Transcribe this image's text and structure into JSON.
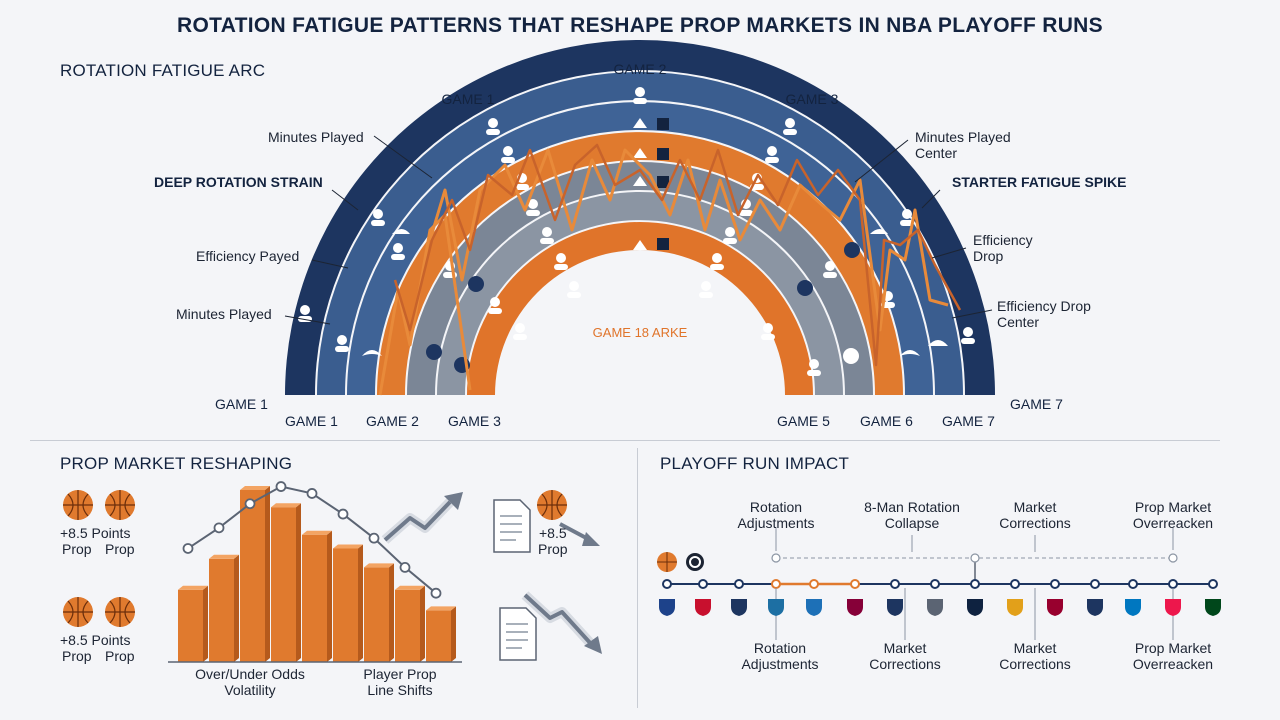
{
  "title": "ROTATION FATIGUE PATTERNS THAT RESHAPE PROP MARKETS IN NBA PLAYOFF RUNS",
  "arc": {
    "heading": "ROTATION FATIGUE ARC",
    "top_labels": {
      "game2": "GAME 2",
      "game1": "GAME 1",
      "game3": "GAME 3"
    },
    "left_callouts": [
      "Minutes Played",
      "DEEP ROTATION STRAIN",
      "Efficiency Payed",
      "Minutes Played"
    ],
    "right_callouts": [
      "Minutes Played Center",
      "STARTER FATIGUE SPIKE",
      "Efficiency Drop",
      "Efficiency Drop Center"
    ],
    "center_label": "GAME 18 ARKE",
    "bottom_left_game1": "GAME 1",
    "bottom_right_game7": "GAME 7",
    "baseline_games": [
      "GAME 1",
      "GAME 2",
      "GAME 3",
      "GAME 5",
      "GAME 6",
      "GAME 7"
    ],
    "colors": {
      "navy": "#1d3560",
      "blue": "#3a5d8f",
      "orange": "#e07a2e",
      "gray": "#7b8696",
      "line": "#e88a3a"
    }
  },
  "prop": {
    "heading": "PROP MARKET RESHAPING",
    "icon_labels": [
      "+8.5 Points",
      "Prop",
      "Prop",
      "+8.5 Points",
      "Prop",
      "Prop"
    ],
    "doc_label_1": "+8.5",
    "doc_label_1b": "Prop",
    "x_label_1": "Over/Under Odds",
    "x_label_1b": "Volatility",
    "x_label_2": "Player Prop",
    "x_label_2b": "Line Shifts",
    "bars": [
      0.42,
      0.6,
      1.0,
      0.9,
      0.74,
      0.66,
      0.55,
      0.42,
      0.3
    ]
  },
  "impact": {
    "heading": "PLAYOFF RUN IMPACT",
    "top_labels": [
      [
        "Rotation",
        "Adjustments"
      ],
      [
        "8-Man Rotation",
        "Collapse"
      ],
      [
        "Market",
        "Corrections"
      ],
      [
        "Prop Market",
        "Overreacken"
      ]
    ],
    "bottom_labels": [
      [
        "Rotation",
        "Adjustments"
      ],
      [
        "Market",
        "Corrections"
      ],
      [
        "Market",
        "Corrections"
      ],
      [
        "Prop Market",
        "Overreacken"
      ]
    ],
    "team_icons": [
      "nba-logo-icon",
      "hawks-icon",
      "nets-icon",
      "hornets-icon",
      "bulls-icon",
      "cavaliers-icon",
      "mavericks-icon",
      "celtics-icon",
      "nuggets-icon",
      "pistons-icon",
      "heat-icon",
      "knicks-icon",
      "magic-icon",
      "76ers-icon",
      "bucks-icon"
    ]
  }
}
